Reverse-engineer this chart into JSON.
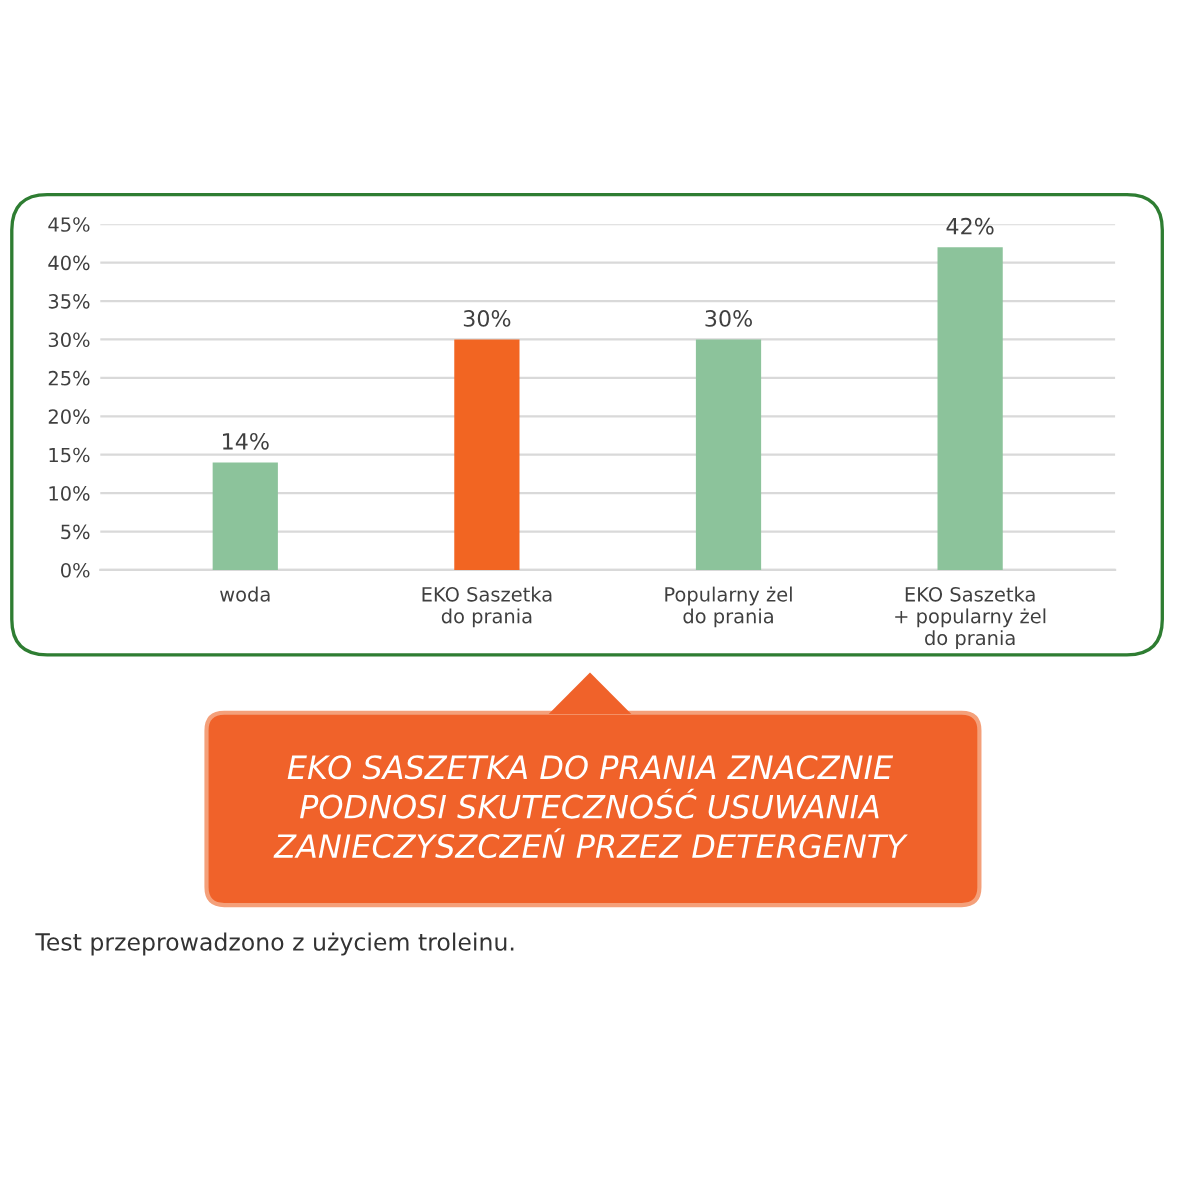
{
  "chart_data": {
    "type": "bar",
    "categories": [
      "woda",
      "EKO Saszetka\ndo prania",
      "Popularny żel\ndo prania",
      "EKO Saszetka\n+ popularny żel\ndo prania"
    ],
    "values": [
      14,
      30,
      30,
      42
    ],
    "colors": [
      "#8cc39b",
      "#f26522",
      "#8cc39b",
      "#8cc39b"
    ],
    "value_labels": [
      "14%",
      "30%",
      "30%",
      "42%"
    ],
    "ylim": [
      0,
      45
    ],
    "yticks": [
      {
        "value": 0,
        "label": "0%"
      },
      {
        "value": 5,
        "label": "5%"
      },
      {
        "value": 10,
        "label": "10%"
      },
      {
        "value": 15,
        "label": "15%"
      },
      {
        "value": 20,
        "label": "20%"
      },
      {
        "value": 25,
        "label": "25%"
      },
      {
        "value": 30,
        "label": "30%"
      },
      {
        "value": 35,
        "label": "35%"
      },
      {
        "value": 40,
        "label": "40%"
      },
      {
        "value": 45,
        "label": "45%"
      }
    ],
    "grid": "y",
    "annotations": [
      "EKO SASZETKA DO PRANIA ZNACZNIE\nPODNOSI SKUTECZNOŚĆ USUWANIA\nZANIECZYSZCZEŃ PRZEZ DETERGENTY",
      "Test przeprowadzono z użyciem troleinu."
    ]
  }
}
